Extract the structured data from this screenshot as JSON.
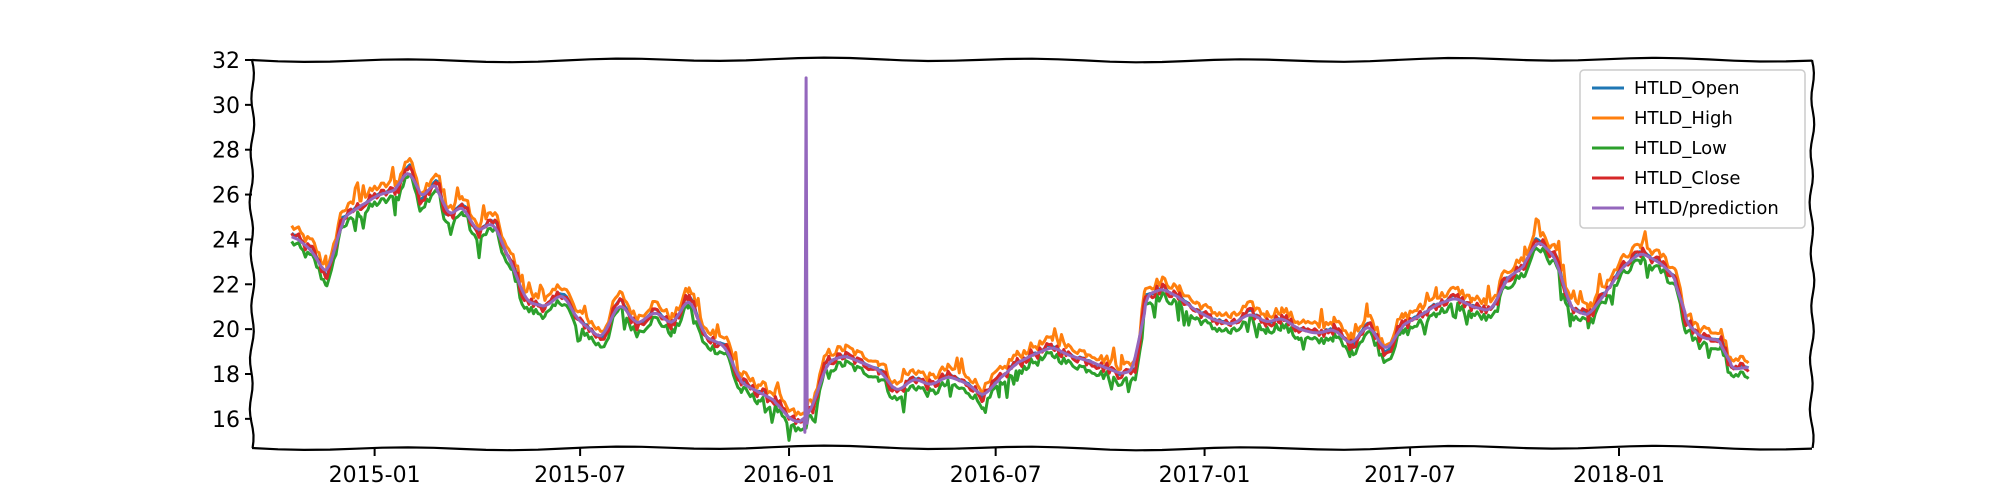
{
  "chart_data": {
    "type": "line",
    "title": "",
    "xlabel": "",
    "ylabel": "",
    "xlim": [
      "2014-09-15",
      "2018-06-20"
    ],
    "ylim": [
      14.7,
      32
    ],
    "grid": false,
    "legend_position": "top-right",
    "x_ticks": [
      "2015-01-01",
      "2015-07-01",
      "2016-01-01",
      "2016-07-01",
      "2017-01-01",
      "2017-07-01",
      "2018-01-01"
    ],
    "x_tick_labels": [
      "2015-01",
      "2015-07",
      "2016-01",
      "2016-07",
      "2017-01",
      "2017-07",
      "2018-01"
    ],
    "y_ticks": [
      16,
      18,
      20,
      22,
      24,
      26,
      28,
      30,
      32
    ],
    "y_tick_labels": [
      "16",
      "18",
      "20",
      "22",
      "24",
      "26",
      "28",
      "30",
      "32"
    ],
    "series": [
      {
        "name": "HTLD_Open",
        "color": "#1f77b4",
        "offset": 0.05,
        "noise": 0.05
      },
      {
        "name": "HTLD_High",
        "color": "#ff7f0e",
        "offset": 0.35,
        "noise": 0.1
      },
      {
        "name": "HTLD_Low",
        "color": "#2ca02c",
        "offset": -0.35,
        "noise": 0.1
      },
      {
        "name": "HTLD_Close",
        "color": "#d62728",
        "offset": 0.0,
        "noise": 0.12
      },
      {
        "name": "HTLD/prediction",
        "color": "#9467bd",
        "offset": 0.0,
        "noise": 0.0,
        "smooth": true
      }
    ],
    "close_anchors": [
      [
        "2014-10-20",
        24.2
      ],
      [
        "2014-11-05",
        23.6
      ],
      [
        "2014-11-20",
        22.4
      ],
      [
        "2014-12-05",
        25.0
      ],
      [
        "2014-12-20",
        25.5
      ],
      [
        "2015-01-05",
        26.0
      ],
      [
        "2015-01-20",
        26.2
      ],
      [
        "2015-02-01",
        27.3
      ],
      [
        "2015-02-10",
        25.8
      ],
      [
        "2015-02-25",
        26.6
      ],
      [
        "2015-03-05",
        25.0
      ],
      [
        "2015-03-20",
        25.5
      ],
      [
        "2015-04-01",
        24.3
      ],
      [
        "2015-04-15",
        24.8
      ],
      [
        "2015-05-01",
        23.0
      ],
      [
        "2015-05-15",
        21.2
      ],
      [
        "2015-06-01",
        21.0
      ],
      [
        "2015-06-15",
        21.6
      ],
      [
        "2015-07-01",
        20.3
      ],
      [
        "2015-07-20",
        19.6
      ],
      [
        "2015-08-05",
        21.2
      ],
      [
        "2015-08-20",
        20.2
      ],
      [
        "2015-09-05",
        20.8
      ],
      [
        "2015-09-20",
        20.2
      ],
      [
        "2015-10-05",
        21.4
      ],
      [
        "2015-10-20",
        19.6
      ],
      [
        "2015-11-05",
        19.3
      ],
      [
        "2015-11-20",
        17.6
      ],
      [
        "2015-12-05",
        17.2
      ],
      [
        "2015-12-20",
        16.8
      ],
      [
        "2016-01-01",
        16.0
      ],
      [
        "2016-01-12",
        15.8
      ],
      [
        "2016-01-20",
        16.4
      ],
      [
        "2016-02-05",
        18.6
      ],
      [
        "2016-02-20",
        18.8
      ],
      [
        "2016-03-05",
        18.5
      ],
      [
        "2016-03-20",
        18.2
      ],
      [
        "2016-04-05",
        17.2
      ],
      [
        "2016-04-20",
        17.8
      ],
      [
        "2016-05-05",
        17.5
      ],
      [
        "2016-05-20",
        17.9
      ],
      [
        "2016-06-05",
        17.6
      ],
      [
        "2016-06-20",
        17.0
      ],
      [
        "2016-07-05",
        17.8
      ],
      [
        "2016-07-20",
        18.5
      ],
      [
        "2016-08-05",
        18.9
      ],
      [
        "2016-08-20",
        19.2
      ],
      [
        "2016-09-05",
        18.8
      ],
      [
        "2016-09-20",
        18.6
      ],
      [
        "2016-10-05",
        18.3
      ],
      [
        "2016-10-20",
        18.0
      ],
      [
        "2016-11-01",
        18.2
      ],
      [
        "2016-11-10",
        21.5
      ],
      [
        "2016-11-25",
        21.8
      ],
      [
        "2016-12-10",
        21.4
      ],
      [
        "2016-12-25",
        20.8
      ],
      [
        "2017-01-10",
        20.4
      ],
      [
        "2017-01-25",
        20.2
      ],
      [
        "2017-02-10",
        20.7
      ],
      [
        "2017-02-25",
        20.3
      ],
      [
        "2017-03-10",
        20.5
      ],
      [
        "2017-03-25",
        20.0
      ],
      [
        "2017-04-10",
        19.8
      ],
      [
        "2017-04-25",
        20.0
      ],
      [
        "2017-05-10",
        19.3
      ],
      [
        "2017-05-25",
        20.2
      ],
      [
        "2017-06-10",
        19.0
      ],
      [
        "2017-06-25",
        20.2
      ],
      [
        "2017-07-10",
        20.6
      ],
      [
        "2017-07-25",
        21.1
      ],
      [
        "2017-08-10",
        21.4
      ],
      [
        "2017-08-25",
        21.0
      ],
      [
        "2017-09-10",
        20.8
      ],
      [
        "2017-09-25",
        22.3
      ],
      [
        "2017-10-10",
        22.8
      ],
      [
        "2017-10-20",
        24.0
      ],
      [
        "2017-11-05",
        23.3
      ],
      [
        "2017-11-20",
        20.9
      ],
      [
        "2017-12-05",
        20.6
      ],
      [
        "2017-12-20",
        21.6
      ],
      [
        "2018-01-05",
        22.8
      ],
      [
        "2018-01-20",
        23.4
      ],
      [
        "2018-02-05",
        23.0
      ],
      [
        "2018-02-20",
        22.3
      ],
      [
        "2018-03-01",
        20.3
      ],
      [
        "2018-03-15",
        19.6
      ],
      [
        "2018-04-01",
        19.5
      ],
      [
        "2018-04-10",
        18.2
      ],
      [
        "2018-04-25",
        18.3
      ]
    ],
    "prediction_spike": {
      "date": "2016-01-16",
      "peak": 31.2,
      "trough": 15.4
    }
  }
}
